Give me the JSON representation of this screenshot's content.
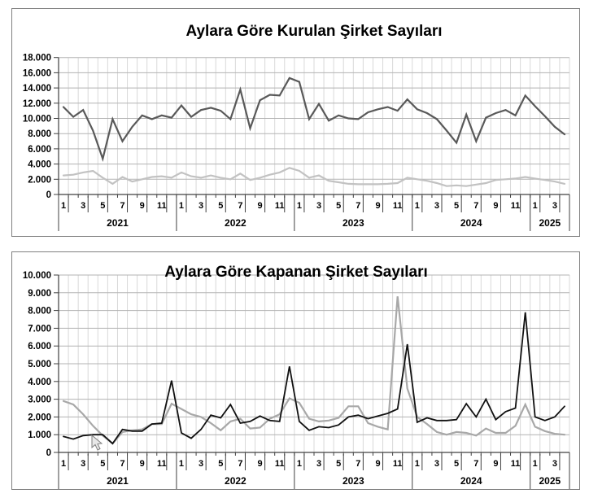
{
  "chart_data": [
    {
      "type": "line",
      "title": "Aylara Göre Kurulan Şirket Sayıları",
      "ylim": [
        0,
        18000
      ],
      "y_step": 2000,
      "y_tick_labels": [
        "18.000",
        "16.000",
        "14.000",
        "12.000",
        "10.000",
        "8.000",
        "6.000",
        "4.000",
        "2.000",
        "0"
      ],
      "x_month_labels": [
        "1",
        "3",
        "5",
        "7",
        "9",
        "11"
      ],
      "years": [
        {
          "label": "2021",
          "months": 12
        },
        {
          "label": "2022",
          "months": 12
        },
        {
          "label": "2023",
          "months": 12
        },
        {
          "label": "2024",
          "months": 12
        },
        {
          "label": "2025",
          "months": 4
        }
      ],
      "grid": true,
      "legend": "none",
      "series": [
        {
          "name": "series-gray",
          "color": "#c2c2c2",
          "values": [
            2500,
            2600,
            2900,
            3100,
            2200,
            1400,
            2300,
            1700,
            2000,
            2300,
            2400,
            2200,
            2900,
            2400,
            2200,
            2500,
            2200,
            2000,
            2750,
            1900,
            2200,
            2600,
            2900,
            3500,
            3100,
            2200,
            2500,
            1800,
            1600,
            1400,
            1350,
            1350,
            1350,
            1400,
            1500,
            2200,
            2000,
            1800,
            1500,
            1100,
            1200,
            1100,
            1300,
            1500,
            1900,
            2000,
            2100,
            2300,
            2100,
            1900,
            1700,
            1400
          ]
        },
        {
          "name": "series-dark",
          "color": "#595959",
          "values": [
            11500,
            10200,
            11100,
            8400,
            4700,
            9900,
            7000,
            8900,
            10400,
            9900,
            10400,
            10100,
            11700,
            10200,
            11100,
            11400,
            11000,
            9900,
            13800,
            8700,
            12400,
            13100,
            13000,
            15300,
            14800,
            9900,
            11900,
            9700,
            10400,
            10000,
            9900,
            10800,
            11200,
            11500,
            11000,
            12500,
            11200,
            10700,
            9900,
            8400,
            6800,
            10500,
            7000,
            10100,
            10700,
            11100,
            10400,
            13000,
            11600,
            10300,
            8900,
            7900
          ]
        }
      ]
    },
    {
      "type": "line",
      "title": "Aylara Göre Kapanan Şirket Sayıları",
      "ylim": [
        0,
        10000
      ],
      "y_step": 1000,
      "y_tick_labels": [
        "10.000",
        "9.000",
        "8.000",
        "7.000",
        "6.000",
        "5.000",
        "4.000",
        "3.000",
        "2.000",
        "1.000",
        "0"
      ],
      "x_month_labels": [
        "1",
        "3",
        "5",
        "7",
        "9",
        "11"
      ],
      "years": [
        {
          "label": "2021",
          "months": 12
        },
        {
          "label": "2022",
          "months": 12
        },
        {
          "label": "2023",
          "months": 12
        },
        {
          "label": "2024",
          "months": 12
        },
        {
          "label": "2025",
          "months": 4
        }
      ],
      "grid": true,
      "legend": "none",
      "series": [
        {
          "name": "series-gray",
          "color": "#a8a8a8",
          "values": [
            2900,
            2700,
            2150,
            1500,
            950,
            500,
            1150,
            1250,
            1300,
            1600,
            1600,
            2750,
            2450,
            2150,
            2000,
            1650,
            1250,
            1750,
            1900,
            1350,
            1400,
            1900,
            2150,
            3050,
            2800,
            1900,
            1750,
            1800,
            1950,
            2600,
            2600,
            1650,
            1450,
            1300,
            8800,
            3600,
            2000,
            1600,
            1150,
            1000,
            1150,
            1100,
            950,
            1350,
            1100,
            1100,
            1500,
            2700,
            1450,
            1200,
            1050,
            1000
          ]
        },
        {
          "name": "series-black",
          "color": "#111111",
          "values": [
            900,
            750,
            950,
            1000,
            1000,
            500,
            1300,
            1200,
            1200,
            1600,
            1650,
            4050,
            1100,
            800,
            1300,
            2100,
            1950,
            2700,
            1650,
            1750,
            2050,
            1800,
            1750,
            4850,
            1750,
            1250,
            1450,
            1400,
            1550,
            2000,
            2100,
            1900,
            2050,
            2200,
            2450,
            6100,
            1700,
            1950,
            1800,
            1800,
            1850,
            2750,
            2000,
            3000,
            1850,
            2300,
            2500,
            7900,
            2000,
            1800,
            2000,
            2600
          ]
        }
      ]
    }
  ],
  "colors": {
    "h_grid": "#b3b3b3",
    "v_grid": "#d9d9d9",
    "axis": "#404040",
    "border": "#7f7f7f",
    "text": "#000000"
  }
}
